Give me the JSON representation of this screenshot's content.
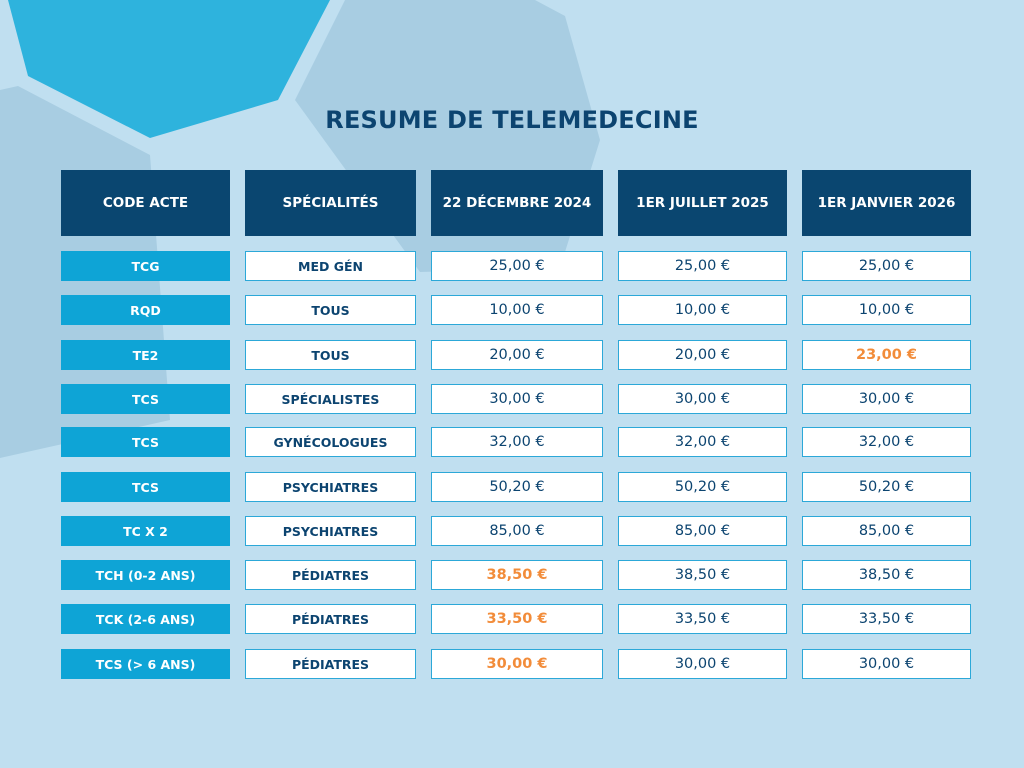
{
  "title": "RESUME DE TELEMEDECINE",
  "colors": {
    "background": "#c0dff0",
    "header": "#0a4670",
    "code_cell": "#0ea4d6",
    "border": "#2ca8d8",
    "text": "#0c4470",
    "highlight": "#f28c3a"
  },
  "headers": [
    "CODE ACTE",
    "SPÉCIALITÉS",
    "22 DÉCEMBRE 2024",
    "1ER JUILLET 2025",
    "1ER JANVIER 2026"
  ],
  "rows": [
    {
      "code": "TCG",
      "specialite": "MED GÉN",
      "dec2024": "25,00 €",
      "jul2025": "25,00 €",
      "jan2026": "25,00 €",
      "highlight": []
    },
    {
      "code": "RQD",
      "specialite": "TOUS",
      "dec2024": "10,00 €",
      "jul2025": "10,00 €",
      "jan2026": "10,00 €",
      "highlight": []
    },
    {
      "code": "TE2",
      "specialite": "TOUS",
      "dec2024": "20,00 €",
      "jul2025": "20,00 €",
      "jan2026": "23,00 €",
      "highlight": [
        "jan2026"
      ]
    },
    {
      "code": "TCS",
      "specialite": "SPÉCIALISTES",
      "dec2024": "30,00 €",
      "jul2025": "30,00 €",
      "jan2026": "30,00 €",
      "highlight": []
    },
    {
      "code": "TCS",
      "specialite": "GYNÉCOLOGUES",
      "dec2024": "32,00 €",
      "jul2025": "32,00 €",
      "jan2026": "32,00 €",
      "highlight": []
    },
    {
      "code": "TCS",
      "specialite": "PSYCHIATRES",
      "dec2024": "50,20 €",
      "jul2025": "50,20 €",
      "jan2026": "50,20 €",
      "highlight": []
    },
    {
      "code": "TC X 2",
      "specialite": "PSYCHIATRES",
      "dec2024": "85,00 €",
      "jul2025": "85,00 €",
      "jan2026": "85,00 €",
      "highlight": []
    },
    {
      "code": "TCH (0-2 ANS)",
      "specialite": "PÉDIATRES",
      "dec2024": "38,50 €",
      "jul2025": "38,50 €",
      "jan2026": "38,50 €",
      "highlight": [
        "dec2024"
      ]
    },
    {
      "code": "TCK (2-6 ANS)",
      "specialite": "PÉDIATRES",
      "dec2024": "33,50 €",
      "jul2025": "33,50 €",
      "jan2026": "33,50 €",
      "highlight": [
        "dec2024"
      ]
    },
    {
      "code": "TCS (> 6 ANS)",
      "specialite": "PÉDIATRES",
      "dec2024": "30,00 €",
      "jul2025": "30,00 €",
      "jan2026": "30,00 €",
      "highlight": [
        "dec2024"
      ]
    }
  ]
}
